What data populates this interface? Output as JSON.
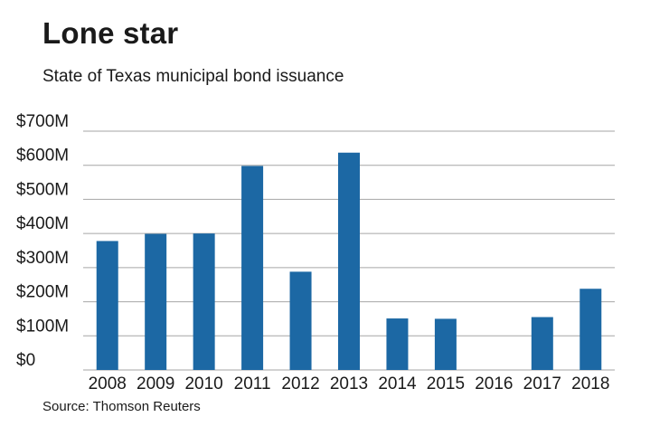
{
  "chart_data": {
    "type": "bar",
    "title": "Lone star",
    "subtitle": "State of Texas municipal bond issuance",
    "source": "Source: Thomson Reuters",
    "categories": [
      "2008",
      "2009",
      "2010",
      "2011",
      "2012",
      "2013",
      "2014",
      "2015",
      "2016",
      "2017",
      "2018"
    ],
    "values": [
      378,
      399,
      400,
      598,
      288,
      637,
      151,
      150,
      0,
      155,
      238
    ],
    "unit": "$M",
    "ylim": [
      0,
      700
    ],
    "yticks": [
      0,
      100,
      200,
      300,
      400,
      500,
      600,
      700
    ],
    "ytick_labels": [
      "$0",
      "$100M",
      "$200M",
      "$300M",
      "$400M",
      "$500M",
      "$600M",
      "$700M"
    ],
    "xlabel": "",
    "ylabel": "",
    "grid": true,
    "colors": {
      "bar": "#1c68a4",
      "grid": "#a6a6a6",
      "text": "#1a1a1a"
    }
  }
}
